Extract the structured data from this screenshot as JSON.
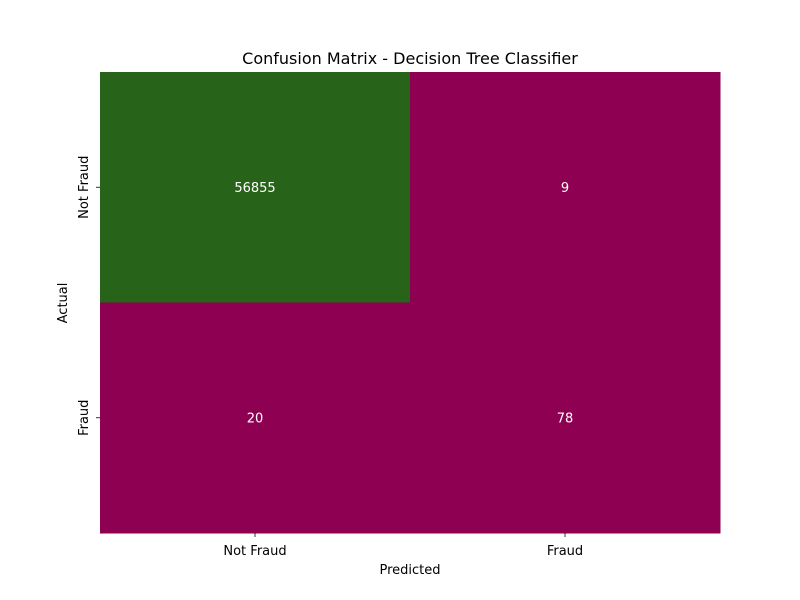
{
  "chart_data": {
    "type": "heatmap",
    "title": "Confusion Matrix - Decision Tree Classifier",
    "xlabel": "Predicted",
    "ylabel": "Actual",
    "x_categories": [
      "Not Fraud",
      "Fraud"
    ],
    "y_categories": [
      "Not Fraud",
      "Fraud"
    ],
    "values": [
      [
        56855,
        9
      ],
      [
        20,
        78
      ]
    ],
    "colormap": {
      "low": "#8e0152",
      "high": "#276419"
    },
    "annotation_color": "#ffffff",
    "colorbar": false,
    "grid": false
  }
}
